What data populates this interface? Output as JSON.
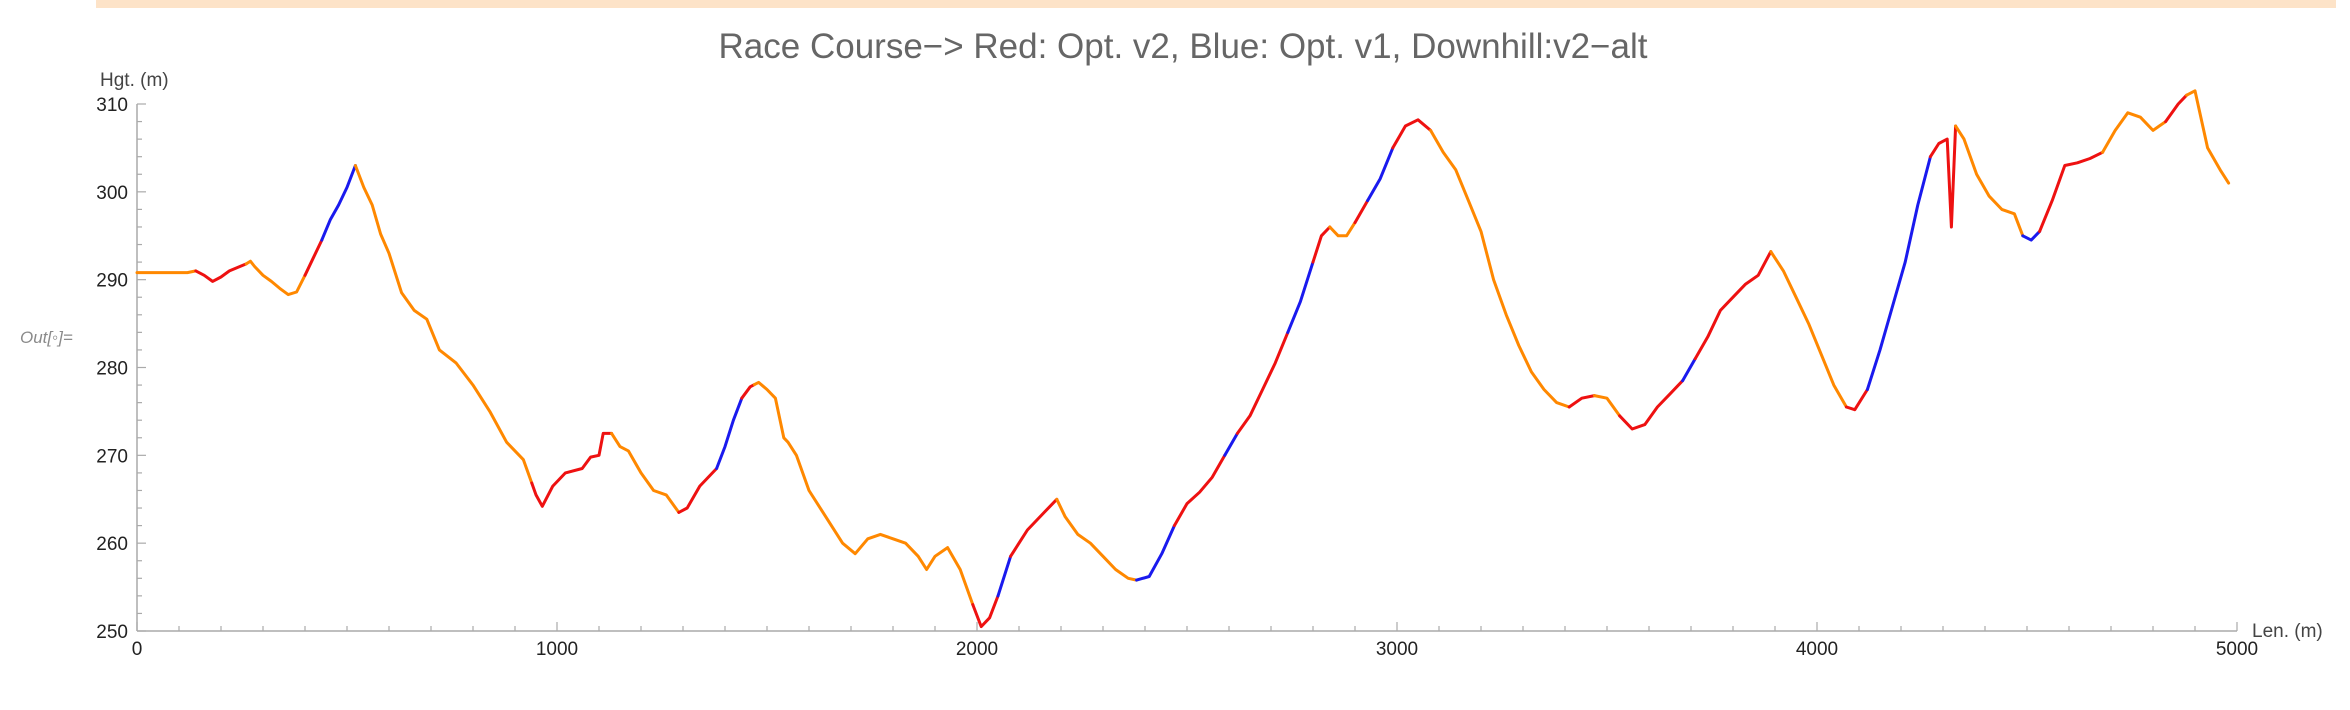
{
  "output_label": "Out[◦]=",
  "colors": {
    "opt_v2": "#ee1111",
    "opt_v1": "#1a1aee",
    "downhill_v2_alt": "#ff8800",
    "axis": "#aaaaaa"
  },
  "chart_data": {
    "type": "line",
    "title": "Race Course−> Red: Opt. v2, Blue: Opt. v1, Downhill:v2−alt",
    "xlabel": "Len. (m)",
    "ylabel": "Hgt. (m)",
    "xlim": [
      0,
      5000
    ],
    "ylim": [
      250,
      310
    ],
    "x_ticks": [
      0,
      1000,
      2000,
      3000,
      4000,
      5000
    ],
    "y_ticks": [
      250,
      260,
      270,
      280,
      290,
      300,
      310
    ],
    "grid": false,
    "legend": "none",
    "profile": [
      [
        0,
        290.8
      ],
      [
        40,
        290.8
      ],
      [
        80,
        290.8
      ],
      [
        120,
        290.8
      ],
      [
        140,
        291
      ],
      [
        160,
        290.5
      ],
      [
        180,
        289.8
      ],
      [
        200,
        290.3
      ],
      [
        220,
        291
      ],
      [
        240,
        291.4
      ],
      [
        260,
        291.8
      ],
      [
        270,
        292.1
      ],
      [
        280,
        291.5
      ],
      [
        300,
        290.5
      ],
      [
        320,
        289.8
      ],
      [
        340,
        289
      ],
      [
        360,
        288.3
      ],
      [
        380,
        288.6
      ],
      [
        400,
        290.5
      ],
      [
        420,
        292.5
      ],
      [
        440,
        294.5
      ],
      [
        460,
        296.8
      ],
      [
        480,
        298.5
      ],
      [
        500,
        300.5
      ],
      [
        520,
        303
      ],
      [
        540,
        300.5
      ],
      [
        560,
        298.5
      ],
      [
        580,
        295.2
      ],
      [
        600,
        293
      ],
      [
        630,
        288.5
      ],
      [
        660,
        286.5
      ],
      [
        690,
        285.5
      ],
      [
        720,
        282
      ],
      [
        760,
        280.5
      ],
      [
        800,
        278
      ],
      [
        840,
        275
      ],
      [
        880,
        271.5
      ],
      [
        920,
        269.5
      ],
      [
        950,
        265.5
      ],
      [
        965,
        264.2
      ],
      [
        990,
        266.5
      ],
      [
        1020,
        268
      ],
      [
        1060,
        268.5
      ],
      [
        1080,
        269.8
      ],
      [
        1100,
        270
      ],
      [
        1110,
        272.5
      ],
      [
        1130,
        272.5
      ],
      [
        1150,
        271
      ],
      [
        1170,
        270.5
      ],
      [
        1200,
        268
      ],
      [
        1230,
        266
      ],
      [
        1260,
        265.5
      ],
      [
        1290,
        263.5
      ],
      [
        1310,
        264
      ],
      [
        1340,
        266.5
      ],
      [
        1380,
        268.5
      ],
      [
        1400,
        271
      ],
      [
        1420,
        274
      ],
      [
        1440,
        276.5
      ],
      [
        1460,
        277.8
      ],
      [
        1480,
        278.3
      ],
      [
        1500,
        277.5
      ],
      [
        1520,
        276.5
      ],
      [
        1540,
        272
      ],
      [
        1550,
        271.5
      ],
      [
        1570,
        270
      ],
      [
        1600,
        266
      ],
      [
        1640,
        263
      ],
      [
        1680,
        260
      ],
      [
        1710,
        258.8
      ],
      [
        1740,
        260.5
      ],
      [
        1770,
        261
      ],
      [
        1800,
        260.5
      ],
      [
        1830,
        260
      ],
      [
        1860,
        258.5
      ],
      [
        1880,
        257
      ],
      [
        1900,
        258.5
      ],
      [
        1930,
        259.5
      ],
      [
        1960,
        257
      ],
      [
        1990,
        253
      ],
      [
        2010,
        250.5
      ],
      [
        2030,
        251.5
      ],
      [
        2050,
        254
      ],
      [
        2080,
        258.5
      ],
      [
        2120,
        261.5
      ],
      [
        2160,
        263.5
      ],
      [
        2190,
        265
      ],
      [
        2210,
        263
      ],
      [
        2240,
        261
      ],
      [
        2270,
        260
      ],
      [
        2300,
        258.5
      ],
      [
        2330,
        257
      ],
      [
        2360,
        256
      ],
      [
        2380,
        255.8
      ],
      [
        2410,
        256.2
      ],
      [
        2440,
        258.8
      ],
      [
        2470,
        262
      ],
      [
        2500,
        264.5
      ],
      [
        2530,
        265.8
      ],
      [
        2560,
        267.5
      ],
      [
        2590,
        270
      ],
      [
        2620,
        272.5
      ],
      [
        2650,
        274.5
      ],
      [
        2680,
        277.5
      ],
      [
        2710,
        280.5
      ],
      [
        2740,
        284
      ],
      [
        2770,
        287.5
      ],
      [
        2800,
        292
      ],
      [
        2820,
        295
      ],
      [
        2840,
        296
      ],
      [
        2860,
        295
      ],
      [
        2880,
        295
      ],
      [
        2900,
        296.5
      ],
      [
        2930,
        299
      ],
      [
        2960,
        301.5
      ],
      [
        2990,
        305
      ],
      [
        3020,
        307.5
      ],
      [
        3050,
        308.2
      ],
      [
        3080,
        307
      ],
      [
        3110,
        304.5
      ],
      [
        3140,
        302.5
      ],
      [
        3170,
        299
      ],
      [
        3200,
        295.5
      ],
      [
        3230,
        290
      ],
      [
        3260,
        286
      ],
      [
        3290,
        282.5
      ],
      [
        3320,
        279.5
      ],
      [
        3350,
        277.5
      ],
      [
        3380,
        276
      ],
      [
        3410,
        275.5
      ],
      [
        3440,
        276.5
      ],
      [
        3470,
        276.8
      ],
      [
        3500,
        276.5
      ],
      [
        3530,
        274.5
      ],
      [
        3560,
        273
      ],
      [
        3590,
        273.5
      ],
      [
        3620,
        275.5
      ],
      [
        3650,
        277
      ],
      [
        3680,
        278.5
      ],
      [
        3710,
        281
      ],
      [
        3740,
        283.5
      ],
      [
        3770,
        286.5
      ],
      [
        3800,
        288
      ],
      [
        3830,
        289.5
      ],
      [
        3860,
        290.5
      ],
      [
        3890,
        293.2
      ],
      [
        3920,
        291
      ],
      [
        3950,
        288
      ],
      [
        3980,
        285
      ],
      [
        4010,
        281.5
      ],
      [
        4040,
        278
      ],
      [
        4070,
        275.5
      ],
      [
        4090,
        275.2
      ],
      [
        4120,
        277.5
      ],
      [
        4150,
        282
      ],
      [
        4180,
        287
      ],
      [
        4210,
        292
      ],
      [
        4240,
        298.5
      ],
      [
        4270,
        304
      ],
      [
        4290,
        305.5
      ],
      [
        4310,
        306
      ],
      [
        4320,
        296
      ],
      [
        4330,
        307.5
      ],
      [
        4350,
        306
      ],
      [
        4380,
        302
      ],
      [
        4410,
        299.5
      ],
      [
        4440,
        298
      ],
      [
        4470,
        297.5
      ],
      [
        4490,
        295
      ],
      [
        4510,
        294.5
      ],
      [
        4530,
        295.5
      ],
      [
        4560,
        299
      ],
      [
        4590,
        303
      ],
      [
        4620,
        303.3
      ],
      [
        4650,
        303.8
      ],
      [
        4680,
        304.5
      ],
      [
        4710,
        307
      ],
      [
        4740,
        309
      ],
      [
        4770,
        308.5
      ],
      [
        4800,
        307
      ],
      [
        4830,
        308
      ],
      [
        4860,
        310
      ],
      [
        4880,
        311
      ],
      [
        4900,
        311.5
      ],
      [
        4930,
        305
      ],
      [
        4960,
        302.5
      ],
      [
        4980,
        301
      ]
    ],
    "segments": [
      {
        "series": "Downhill:v2-alt",
        "color": "#ff8800",
        "x": [
          0,
          140
        ]
      },
      {
        "series": "Opt. v2",
        "color": "#ee1111",
        "x": [
          140,
          260
        ]
      },
      {
        "series": "Downhill:v2-alt",
        "color": "#ff8800",
        "x": [
          260,
          400
        ]
      },
      {
        "series": "Opt. v2",
        "color": "#ee1111",
        "x": [
          400,
          440
        ]
      },
      {
        "series": "Opt. v1",
        "color": "#1a1aee",
        "x": [
          440,
          520
        ]
      },
      {
        "series": "Downhill:v2-alt",
        "color": "#ff8800",
        "x": [
          520,
          940
        ]
      },
      {
        "series": "Opt. v2",
        "color": "#ee1111",
        "x": [
          940,
          1130
        ]
      },
      {
        "series": "Downhill:v2-alt",
        "color": "#ff8800",
        "x": [
          1130,
          1290
        ]
      },
      {
        "series": "Opt. v2",
        "color": "#ee1111",
        "x": [
          1290,
          1380
        ]
      },
      {
        "series": "Opt. v1",
        "color": "#1a1aee",
        "x": [
          1380,
          1440
        ]
      },
      {
        "series": "Opt. v2",
        "color": "#ee1111",
        "x": [
          1440,
          1470
        ]
      },
      {
        "series": "Downhill:v2-alt",
        "color": "#ff8800",
        "x": [
          1470,
          1990
        ]
      },
      {
        "series": "Opt. v2",
        "color": "#ee1111",
        "x": [
          1990,
          2050
        ]
      },
      {
        "series": "Opt. v1",
        "color": "#1a1aee",
        "x": [
          2050,
          2080
        ]
      },
      {
        "series": "Opt. v2",
        "color": "#ee1111",
        "x": [
          2080,
          2190
        ]
      },
      {
        "series": "Downhill:v2-alt",
        "color": "#ff8800",
        "x": [
          2190,
          2380
        ]
      },
      {
        "series": "Opt. v1",
        "color": "#1a1aee",
        "x": [
          2380,
          2470
        ]
      },
      {
        "series": "Opt. v2",
        "color": "#ee1111",
        "x": [
          2470,
          2590
        ]
      },
      {
        "series": "Opt. v1",
        "color": "#1a1aee",
        "x": [
          2590,
          2620
        ]
      },
      {
        "series": "Opt. v2",
        "color": "#ee1111",
        "x": [
          2620,
          2740
        ]
      },
      {
        "series": "Opt. v1",
        "color": "#1a1aee",
        "x": [
          2740,
          2800
        ]
      },
      {
        "series": "Opt. v2",
        "color": "#ee1111",
        "x": [
          2800,
          2840
        ]
      },
      {
        "series": "Downhill:v2-alt",
        "color": "#ff8800",
        "x": [
          2840,
          2900
        ]
      },
      {
        "series": "Opt. v2",
        "color": "#ee1111",
        "x": [
          2900,
          2930
        ]
      },
      {
        "series": "Opt. v1",
        "color": "#1a1aee",
        "x": [
          2930,
          2990
        ]
      },
      {
        "series": "Opt. v2",
        "color": "#ee1111",
        "x": [
          2990,
          3080
        ]
      },
      {
        "series": "Downhill:v2-alt",
        "color": "#ff8800",
        "x": [
          3080,
          3410
        ]
      },
      {
        "series": "Opt. v2",
        "color": "#ee1111",
        "x": [
          3410,
          3470
        ]
      },
      {
        "series": "Downhill:v2-alt",
        "color": "#ff8800",
        "x": [
          3470,
          3530
        ]
      },
      {
        "series": "Opt. v2",
        "color": "#ee1111",
        "x": [
          3530,
          3680
        ]
      },
      {
        "series": "Opt. v1",
        "color": "#1a1aee",
        "x": [
          3680,
          3710
        ]
      },
      {
        "series": "Opt. v2",
        "color": "#ee1111",
        "x": [
          3710,
          3890
        ]
      },
      {
        "series": "Downhill:v2-alt",
        "color": "#ff8800",
        "x": [
          3890,
          4070
        ]
      },
      {
        "series": "Opt. v2",
        "color": "#ee1111",
        "x": [
          4070,
          4120
        ]
      },
      {
        "series": "Opt. v1",
        "color": "#1a1aee",
        "x": [
          4120,
          4270
        ]
      },
      {
        "series": "Opt. v2",
        "color": "#ee1111",
        "x": [
          4270,
          4330
        ]
      },
      {
        "series": "Downhill:v2-alt",
        "color": "#ff8800",
        "x": [
          4330,
          4490
        ]
      },
      {
        "series": "Opt. v1",
        "color": "#1a1aee",
        "x": [
          4490,
          4530
        ]
      },
      {
        "series": "Opt. v2",
        "color": "#ee1111",
        "x": [
          4530,
          4680
        ]
      },
      {
        "series": "Downhill:v2-alt",
        "color": "#ff8800",
        "x": [
          4680,
          4830
        ]
      },
      {
        "series": "Opt. v2",
        "color": "#ee1111",
        "x": [
          4830,
          4880
        ]
      },
      {
        "series": "Downhill:v2-alt",
        "color": "#ff8800",
        "x": [
          4880,
          4980
        ]
      }
    ]
  }
}
